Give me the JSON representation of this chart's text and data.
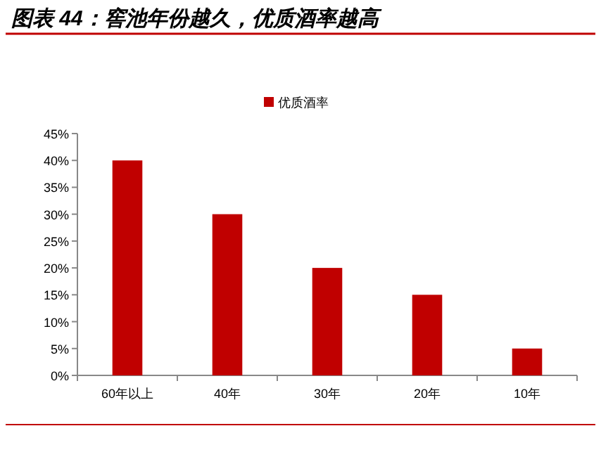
{
  "chart_data": {
    "type": "bar",
    "title": "图表 44：窖池年份越久，优质酒率越高",
    "categories": [
      "60年以上",
      "40年",
      "30年",
      "20年",
      "10年"
    ],
    "series": [
      {
        "name": "优质酒率",
        "color": "#c00000",
        "values": [
          40,
          30,
          20,
          15,
          5
        ]
      }
    ],
    "ylim": [
      0,
      45
    ],
    "yticks": [
      {
        "value": 0,
        "label": "0%"
      },
      {
        "value": 5,
        "label": "5%"
      },
      {
        "value": 10,
        "label": "10%"
      },
      {
        "value": 15,
        "label": "15%"
      },
      {
        "value": 20,
        "label": "20%"
      },
      {
        "value": 25,
        "label": "25%"
      },
      {
        "value": 30,
        "label": "30%"
      },
      {
        "value": 35,
        "label": "35%"
      },
      {
        "value": 40,
        "label": "40%"
      },
      {
        "value": 45,
        "label": "45%"
      }
    ],
    "grid": false,
    "legend": "top"
  }
}
